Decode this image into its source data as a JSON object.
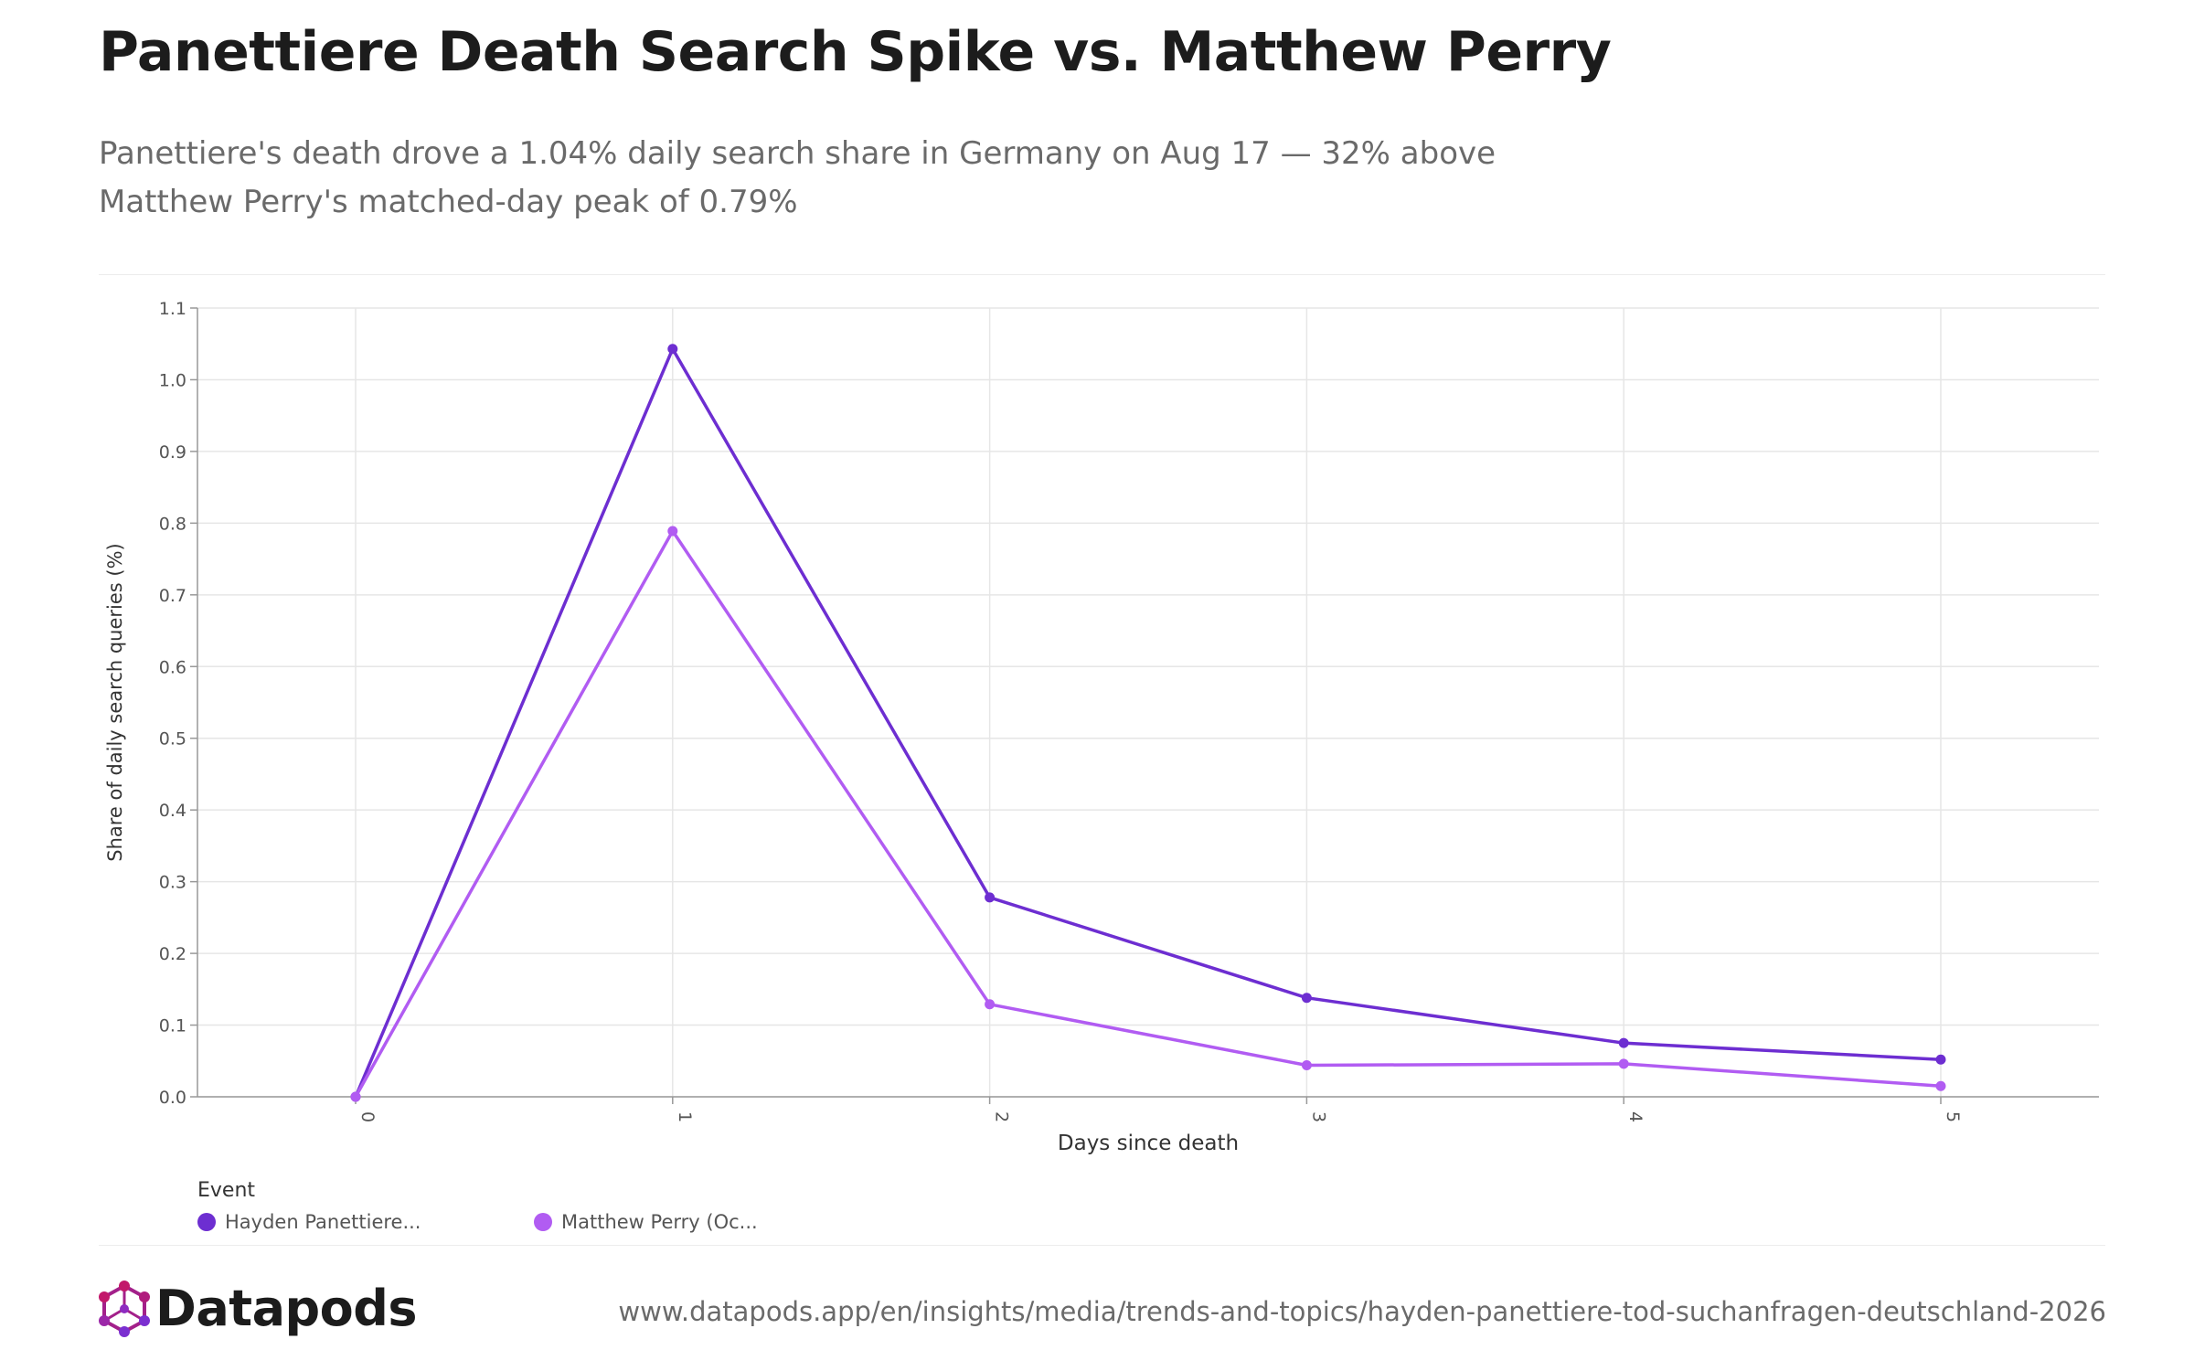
{
  "page": {
    "title": "Panettiere Death Search Spike vs. Matthew Perry",
    "subtitle": "Panettiere's death drove a 1.04% daily search share in Germany on Aug 17 — 32% above Matthew Perry's matched-day peak of 0.79%"
  },
  "chart_data": {
    "type": "line",
    "x": [
      0,
      1,
      2,
      3,
      4,
      5
    ],
    "xlabel": "Days since death",
    "ylabel": "Share of daily search queries (%)",
    "ylim": [
      0,
      1.1
    ],
    "yticks": [
      "0.0",
      "0.1",
      "0.2",
      "0.3",
      "0.4",
      "0.5",
      "0.6",
      "0.7",
      "0.8",
      "0.9",
      "1.0",
      "1.1"
    ],
    "xticks": [
      "0",
      "1",
      "2",
      "3",
      "4",
      "5"
    ],
    "grid": true,
    "legend_placement": "bottom-left",
    "series": [
      {
        "name": "Hayden Panettiere...",
        "color": "#6d2ed1",
        "values": [
          0.0,
          1.043,
          0.278,
          0.138,
          0.075,
          0.052
        ]
      },
      {
        "name": "Matthew Perry (Oc...",
        "color": "#b15cf2",
        "values": [
          0.0,
          0.789,
          0.129,
          0.044,
          0.046,
          0.015
        ]
      }
    ]
  },
  "legend": {
    "title": "Event",
    "items": [
      {
        "label": "Hayden Panettiere...",
        "color": "#6d2ed1"
      },
      {
        "label": "Matthew Perry (Oc...",
        "color": "#b15cf2"
      }
    ]
  },
  "footer": {
    "brand": "Datapods",
    "url": "www.datapods.app/en/insights/media/trends-and-topics/hayden-panettiere-tod-suchanfragen-deutschland-2026"
  },
  "colors": {
    "brand_magenta": "#c2186b",
    "brand_purple": "#7b2fd0"
  }
}
